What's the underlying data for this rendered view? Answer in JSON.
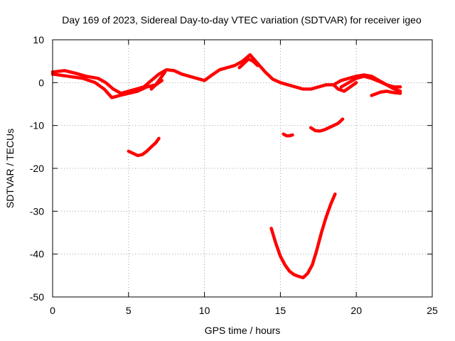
{
  "chart_data": {
    "type": "scatter",
    "title": "Day 169 of 2023, Sidereal Day-to-day VTEC variation (SDTVAR) for receiver igeo",
    "xlabel": "GPS time / hours",
    "ylabel": "SDTVAR / TECUs",
    "xlim": [
      0,
      25
    ],
    "ylim": [
      -50,
      10
    ],
    "xticks": [
      0,
      5,
      10,
      15,
      20,
      25
    ],
    "yticks": [
      -50,
      -40,
      -30,
      -20,
      -10,
      0,
      10
    ],
    "grid": true,
    "series_color": "#ff0000",
    "series": [
      {
        "name": "track-a",
        "x": [
          0,
          0.8,
          1.5,
          2.2,
          3.0,
          3.5,
          4.0,
          4.5,
          5.0,
          5.5,
          6.0,
          6.5,
          7.0,
          7.5,
          8.0,
          8.5,
          9.0,
          9.5,
          10.0,
          10.5,
          11.0,
          11.5,
          12.0,
          12.5,
          13.0,
          13.5,
          14.0,
          14.5,
          15.0,
          15.5,
          16.0,
          16.5,
          17.0,
          17.5,
          18.0,
          18.5,
          19.0,
          19.5,
          20.0,
          20.5,
          21.0,
          21.5,
          22.0,
          22.5,
          22.9
        ],
        "y": [
          2.5,
          2.8,
          2.2,
          1.5,
          1.0,
          0,
          -1.5,
          -2.5,
          -2.0,
          -1.5,
          -1.0,
          0.5,
          2.0,
          3.0,
          2.8,
          2.0,
          1.5,
          1.0,
          0.5,
          1.8,
          3.0,
          3.5,
          4.0,
          5.0,
          6.5,
          4.5,
          2.5,
          0.8,
          0,
          -0.5,
          -1.0,
          -1.5,
          -1.5,
          -1.0,
          -0.5,
          -0.5,
          0.5,
          1.0,
          1.5,
          1.8,
          1.5,
          0.5,
          -0.5,
          -1.0,
          -1.0
        ]
      },
      {
        "name": "track-b",
        "x": [
          0,
          1.0,
          2.0,
          2.8,
          3.4,
          3.9,
          4.4,
          5.0,
          5.6,
          6.2,
          6.8,
          7.2
        ],
        "y": [
          2.0,
          1.5,
          1.0,
          0,
          -1.5,
          -3.5,
          -3.0,
          -2.5,
          -2.0,
          -1.0,
          -0.5,
          0.5
        ]
      },
      {
        "name": "track-c",
        "x": [
          6.5,
          6.8,
          7.1,
          7.4
        ],
        "y": [
          -1.5,
          -0.5,
          1.0,
          2.5
        ]
      },
      {
        "name": "track-d",
        "x": [
          12.3,
          12.6,
          12.9,
          13.2,
          13.5
        ],
        "y": [
          3.5,
          4.5,
          5.5,
          5.0,
          4.0
        ]
      },
      {
        "name": "track-e",
        "x": [
          19.0,
          19.5,
          20.0,
          20.5,
          21.0,
          21.5,
          22.0,
          22.5,
          22.9
        ],
        "y": [
          -1.0,
          0,
          1.0,
          1.5,
          1.0,
          0.3,
          -0.5,
          -1.5,
          -2.0
        ]
      },
      {
        "name": "track-f",
        "x": [
          21.0,
          21.3,
          21.6,
          22.0,
          22.4,
          22.9
        ],
        "y": [
          -3.0,
          -2.6,
          -2.2,
          -2.0,
          -2.3,
          -2.5
        ]
      },
      {
        "name": "track-g",
        "x": [
          18.5,
          18.8,
          19.2,
          19.6,
          20.0
        ],
        "y": [
          -0.5,
          -1.5,
          -2.0,
          -1.0,
          0
        ]
      },
      {
        "name": "dip-early",
        "x": [
          5.0,
          5.3,
          5.6,
          5.9,
          6.2,
          6.5,
          6.8,
          7.0
        ],
        "y": [
          -16.0,
          -16.5,
          -17.0,
          -16.8,
          -16.0,
          -15.0,
          -14.0,
          -13.0
        ]
      },
      {
        "name": "short-segment",
        "x": [
          15.2,
          15.4,
          15.6,
          15.8
        ],
        "y": [
          -12.0,
          -12.4,
          -12.4,
          -12.2
        ]
      },
      {
        "name": "arc-late",
        "x": [
          17.0,
          17.3,
          17.6,
          17.9,
          18.2,
          18.5,
          18.8,
          19.1
        ],
        "y": [
          -10.5,
          -11.2,
          -11.3,
          -11.0,
          -10.5,
          -10.0,
          -9.5,
          -8.5
        ]
      },
      {
        "name": "deep-dip",
        "x": [
          14.4,
          14.7,
          15.0,
          15.3,
          15.6,
          15.9,
          16.2,
          16.5,
          16.8,
          17.1,
          17.4,
          17.7,
          18.0,
          18.3,
          18.6
        ],
        "y": [
          -34.0,
          -37.5,
          -40.5,
          -42.5,
          -44.0,
          -44.8,
          -45.2,
          -45.5,
          -44.5,
          -42.5,
          -39.0,
          -35.0,
          -31.5,
          -28.5,
          -26.0
        ]
      }
    ]
  }
}
